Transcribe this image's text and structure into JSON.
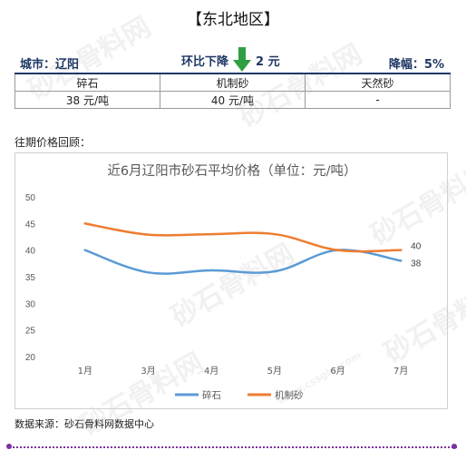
{
  "header": {
    "region": "【东北地区】",
    "city": "城市：辽阳",
    "change_label": "环比下降",
    "change_value": "2 元",
    "decline_label": "降幅：",
    "decline_pct": "5%"
  },
  "price_table": {
    "headers": [
      "碎石",
      "机制砂",
      "天然砂"
    ],
    "values": [
      "38 元/吨",
      "40 元/吨",
      "-"
    ]
  },
  "history_label": "往期价格回顾：",
  "source": "数据来源：砂石骨料网数据中心",
  "watermark": "砂石骨料网",
  "watermark_url": "www.cssglw.com",
  "chart_data": {
    "type": "line",
    "title": "近6月辽阳市砂石平均价格（单位：元/吨）",
    "categories": [
      "1月",
      "3月",
      "4月",
      "5月",
      "6月",
      "7月"
    ],
    "ylim": [
      20,
      50
    ],
    "yticks": [
      20,
      25,
      30,
      35,
      40,
      45,
      50
    ],
    "grid": false,
    "smooth": true,
    "legend_position": "bottom",
    "series": [
      {
        "name": "碎石",
        "values": [
          40,
          35.8,
          36.2,
          36,
          40,
          38
        ],
        "color": "#5b9bd5",
        "end_label": "38"
      },
      {
        "name": "机制砂",
        "values": [
          45,
          42.9,
          43,
          43,
          40,
          40
        ],
        "color": "#ed7d31",
        "end_label": "40"
      }
    ]
  },
  "colors": {
    "accent": "#1f3864",
    "arrow": "#2ea043",
    "rule": "#7b2fa0"
  }
}
